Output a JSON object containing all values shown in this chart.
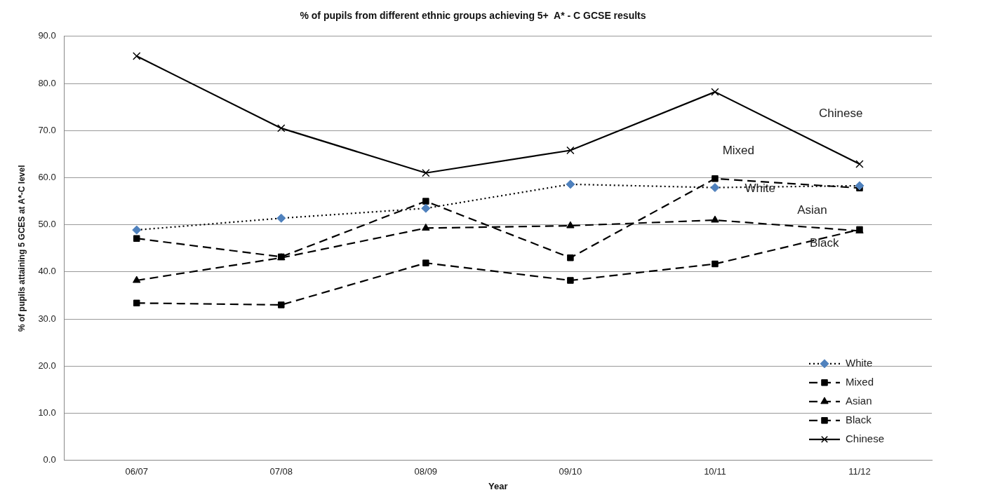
{
  "chart_data": {
    "type": "line",
    "title": "% of pupils from different ethnic groups achieving 5+  A* - C GCSE results",
    "xlabel": "Year",
    "ylabel": "% of pupils attaining 5 GCES at A*-C level",
    "categories": [
      "06/07",
      "07/08",
      "08/09",
      "09/10",
      "10/11",
      "11/12"
    ],
    "series": [
      {
        "name": "White",
        "color": "#4f81bd",
        "marker": "diamond",
        "line_style": "dotted",
        "values": [
          48.9,
          51.4,
          53.5,
          58.6,
          57.9,
          58.3
        ]
      },
      {
        "name": "Mixed",
        "color": "#000000",
        "marker": "square",
        "line_style": "dashed",
        "values": [
          47.1,
          43.2,
          55.0,
          43.0,
          59.8,
          57.8
        ]
      },
      {
        "name": "Asian",
        "color": "#000000",
        "marker": "triangle",
        "line_style": "dashed",
        "values": [
          38.2,
          43.0,
          49.3,
          49.8,
          51.0,
          48.7
        ]
      },
      {
        "name": "Black",
        "color": "#000000",
        "marker": "square",
        "line_style": "dashed",
        "values": [
          33.4,
          33.0,
          41.9,
          38.2,
          41.7,
          49.0
        ]
      },
      {
        "name": "Chinese",
        "color": "#000000",
        "marker": "cross",
        "line_style": "solid",
        "values": [
          85.8,
          70.5,
          61.0,
          65.8,
          78.2,
          62.9
        ]
      }
    ],
    "annotations": [
      "Chinese",
      "Mixed",
      "White",
      "Asian",
      "Black"
    ],
    "ylim": [
      0,
      90
    ],
    "yticks": [
      {
        "value": 0,
        "label": "0.0"
      },
      {
        "value": 10,
        "label": "10.0"
      },
      {
        "value": 20,
        "label": "20.0"
      },
      {
        "value": 30,
        "label": "30.0"
      },
      {
        "value": 40,
        "label": "40.0"
      },
      {
        "value": 50,
        "label": "50.0"
      },
      {
        "value": 60,
        "label": "60.0"
      },
      {
        "value": 70,
        "label": "70.0"
      },
      {
        "value": 80,
        "label": "80.0"
      },
      {
        "value": 90,
        "label": "90.0"
      }
    ],
    "grid": "y",
    "legend": "bottom right"
  }
}
